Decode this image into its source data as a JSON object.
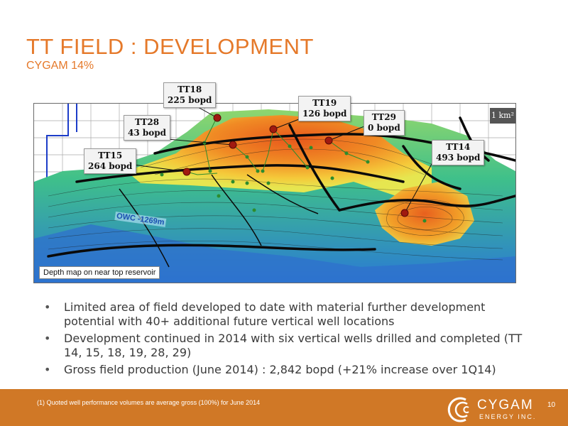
{
  "header": {
    "title": "TT FIELD : DEVELOPMENT",
    "subtitle": "CYGAM 14%"
  },
  "map": {
    "caption": "Depth map on near top reservoir",
    "scale_label": "1 km²",
    "owc_label": "OWC -1269m",
    "well_callouts": [
      {
        "name": "TT18",
        "rate": "225 bopd"
      },
      {
        "name": "TT28",
        "rate": "43 bopd"
      },
      {
        "name": "TT19",
        "rate": "126 bopd"
      },
      {
        "name": "TT29",
        "rate": "0 bopd"
      },
      {
        "name": "TT15",
        "rate": "264 bopd"
      },
      {
        "name": "TT14",
        "rate": "493 bopd"
      }
    ],
    "colors": {
      "deep": "#2e7bd6",
      "mid": "#38c08a",
      "shallow": "#f0a020",
      "crest": "#e8581c",
      "well_highlight": "#a01a10",
      "well_minor": "#2d8c2d"
    }
  },
  "bullets": [
    "Limited area of field developed to date with material further development potential with 40+ additional future vertical well locations",
    "Development continued in 2014 with six vertical wells drilled and completed (TT 14, 15, 18, 19, 28, 29)",
    "Gross field production (June 2014) : 2,842 bopd (+21% increase over 1Q14)"
  ],
  "footer": {
    "footnote": "(1)  Quoted well performance volumes are average gross (100%) for June 2014",
    "logo_name": "CYGAM",
    "logo_sub": "ENERGY INC.",
    "page_number": "10",
    "bar_color": "#d07826"
  }
}
